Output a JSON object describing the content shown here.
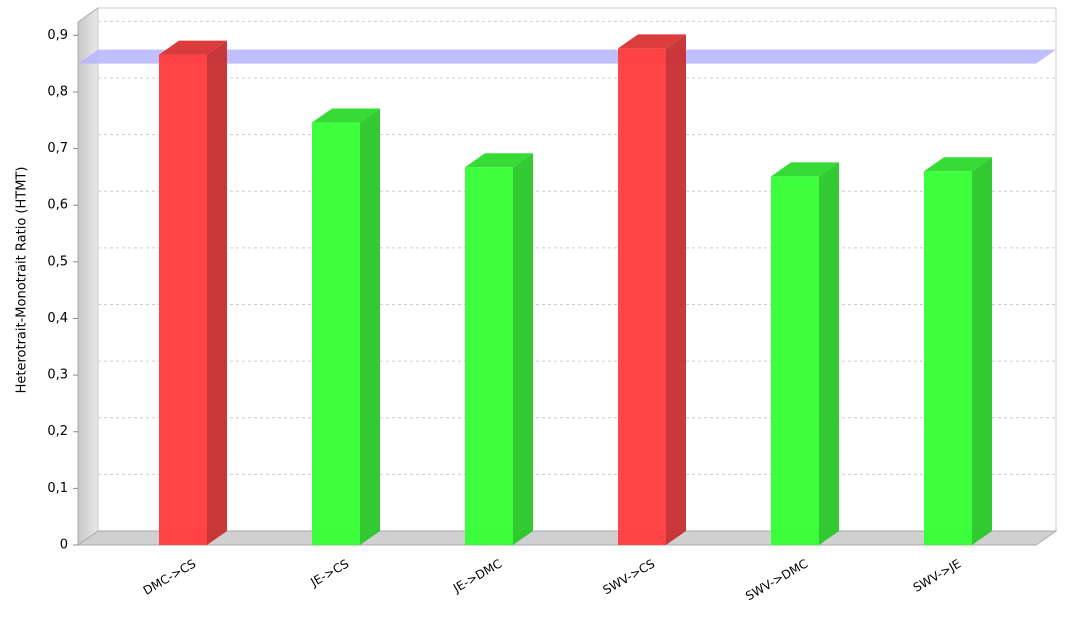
{
  "chart_data": {
    "type": "bar3d",
    "y_label": "Heterotrait-Monotrait Ratio (HTMT)",
    "categories": [
      "DMC->CS",
      "JE->CS",
      "JE->DMC",
      "SWV->CS",
      "SWV->DMC",
      "SWV->JE"
    ],
    "values": [
      0.866,
      0.746,
      0.667,
      0.877,
      0.651,
      0.66
    ],
    "colors": [
      "#ff3b3b",
      "#33ff33",
      "#33ff33",
      "#ff3b3b",
      "#33ff33",
      "#33ff33"
    ],
    "threshold": 0.85,
    "threshold_color": "#b4b4ff",
    "ylim": [
      0,
      0.92
    ],
    "yticks": [
      0,
      {
        "value": 0.1,
        "label": "0,1"
      },
      {
        "value": 0.2,
        "label": "0,2"
      },
      {
        "value": 0.3,
        "label": "0,3"
      },
      {
        "value": 0.4,
        "label": "0,4"
      },
      {
        "value": 0.5,
        "label": "0,5"
      },
      {
        "value": 0.6,
        "label": "0,6"
      },
      {
        "value": 0.7,
        "label": "0,7"
      },
      {
        "value": 0.8,
        "label": "0,8"
      },
      {
        "value": 0.9,
        "label": "0,9"
      }
    ],
    "grid": true
  }
}
